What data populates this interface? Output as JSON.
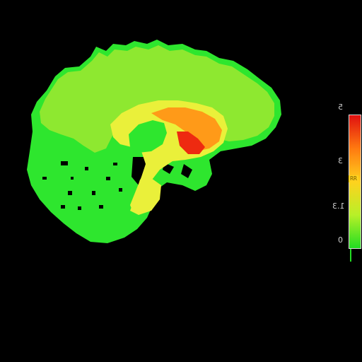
{
  "colorbar": {
    "ticks": [
      "5",
      "3",
      "1.3",
      "0"
    ],
    "colors": [
      "#e01010",
      "#ff7a10",
      "#ffd21e",
      "#b8f028",
      "#22dd22"
    ],
    "marker_text": "RR"
  },
  "scan": {
    "background": "#000000",
    "tissue_colors": {
      "low": "#2ee62e",
      "mid": "#8ee830",
      "medium_high": "#eaf03a",
      "high": "#ff9a18",
      "peak": "#ee2a10"
    }
  }
}
